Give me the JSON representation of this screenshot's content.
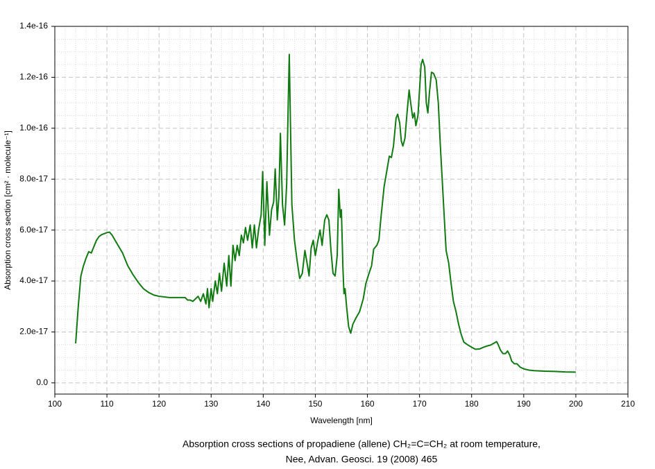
{
  "chart_data": {
    "type": "line",
    "xlabel": "Wavelength [nm]",
    "ylabel": "Absorption cross section [cm² · molecule⁻¹]",
    "caption": [
      "Absorption cross sections of propadiene (allene) CH₂=C=CH₂ at room temperature,",
      "Nee, Advan. Geosci. 19 (2008) 465"
    ],
    "xlim": [
      100,
      210
    ],
    "ylim": [
      -4.4e-18,
      1.4e-16
    ],
    "xticks": [
      100,
      110,
      120,
      130,
      140,
      150,
      160,
      170,
      180,
      190,
      200,
      210
    ],
    "yticks": [
      {
        "value": 0,
        "label": "0.0"
      },
      {
        "value": 2e-17,
        "label": "2.0e-17"
      },
      {
        "value": 4e-17,
        "label": "4.0e-17"
      },
      {
        "value": 6e-17,
        "label": "6.0e-17"
      },
      {
        "value": 8e-17,
        "label": "8.0e-17"
      },
      {
        "value": 1e-16,
        "label": "1.0e-16"
      },
      {
        "value": 1.2e-16,
        "label": "1.2e-16"
      },
      {
        "value": 1.4e-16,
        "label": "1.4e-16"
      }
    ],
    "grid": true,
    "series": [
      {
        "color": "#0f7a0f",
        "x": [
          104,
          104.5,
          105,
          105.5,
          106,
          106.5,
          107,
          107.3,
          108,
          108.5,
          109,
          110,
          110.5,
          111,
          112,
          113,
          114,
          115,
          116,
          117,
          118,
          119,
          120,
          122,
          124,
          125,
          125.5,
          126,
          126.5,
          127,
          127.5,
          128,
          128.5,
          129,
          129.3,
          129.6,
          130,
          130.3,
          130.8,
          131.2,
          131.6,
          132,
          132.5,
          133,
          133.4,
          133.8,
          134.2,
          134.6,
          135,
          135.4,
          135.8,
          136.2,
          136.6,
          137,
          137.5,
          137.9,
          138.3,
          138.7,
          139.1,
          139.6,
          139.9,
          140.3,
          140.7,
          141.2,
          141.6,
          142,
          142.3,
          142.7,
          143,
          143.3,
          143.7,
          144.1,
          144.5,
          144.8,
          145,
          145.2,
          145.5,
          146,
          146.5,
          147,
          147.5,
          148,
          148.5,
          148.8,
          149.2,
          149.6,
          150,
          150.5,
          150.9,
          151.3,
          151.8,
          152.2,
          152.6,
          153,
          153.4,
          153.8,
          154.2,
          154.5,
          154.8,
          155,
          155.3,
          155.5,
          155.7,
          156,
          156.4,
          156.8,
          157.2,
          157.8,
          158.5,
          159.2,
          159.7,
          160.3,
          160.8,
          161.2,
          161.8,
          162.2,
          162.6,
          163.2,
          163.7,
          164.2,
          164.6,
          165,
          165.5,
          165.8,
          166.2,
          166.5,
          166.8,
          167.2,
          167.6,
          168,
          168.3,
          168.7,
          169,
          169.3,
          169.7,
          170,
          170.3,
          170.6,
          171,
          171.3,
          171.6,
          171.9,
          172.3,
          172.7,
          173.2,
          173.6,
          174,
          174.4,
          174.8,
          175.1,
          175.6,
          176,
          176.5,
          177,
          177.5,
          178,
          178.5,
          179.2,
          180,
          180.7,
          181.5,
          182.3,
          183,
          183.6,
          184.2,
          184.8,
          185.1,
          185.5,
          186,
          186.5,
          186.9,
          187.3,
          187.7,
          188.2,
          188.7,
          189.3,
          190,
          191,
          192,
          194,
          196,
          198,
          200
        ],
        "values": [
          1.55e-17,
          3e-17,
          4.2e-17,
          4.6e-17,
          4.9e-17,
          5.15e-17,
          5.1e-17,
          5.25e-17,
          5.6e-17,
          5.75e-17,
          5.82e-17,
          5.9e-17,
          5.92e-17,
          5.8e-17,
          5.45e-17,
          5.1e-17,
          4.6e-17,
          4.25e-17,
          3.95e-17,
          3.7e-17,
          3.55e-17,
          3.45e-17,
          3.4e-17,
          3.35e-17,
          3.35e-17,
          3.35e-17,
          3.25e-17,
          3.25e-17,
          3.2e-17,
          3.3e-17,
          3.4e-17,
          3.2e-17,
          3.5e-17,
          3.1e-17,
          3.7e-17,
          2.95e-17,
          3.7e-17,
          3.2e-17,
          4e-17,
          3.5e-17,
          4.3e-17,
          3.6e-17,
          4.7e-17,
          3.8e-17,
          5e-17,
          3.8e-17,
          5.4e-17,
          4.8e-17,
          5.4e-17,
          5e-17,
          5.8e-17,
          5.5e-17,
          6.1e-17,
          5.6e-17,
          6.2e-17,
          5.3e-17,
          6.2e-17,
          5.3e-17,
          6e-17,
          6.6e-17,
          8.3e-17,
          5.4e-17,
          7.9e-17,
          5.8e-17,
          6.8e-17,
          7.1e-17,
          8.4e-17,
          6.4e-17,
          7.3e-17,
          9.8e-17,
          7e-17,
          6.2e-17,
          7.8e-17,
          1.1e-16,
          1.29e-16,
          1.05e-16,
          7e-17,
          5.6e-17,
          4.8e-17,
          4.1e-17,
          4.3e-17,
          5.2e-17,
          4.6e-17,
          4.2e-17,
          5.3e-17,
          5.6e-17,
          5e-17,
          5.6e-17,
          6e-17,
          5.4e-17,
          6.4e-17,
          6.6e-17,
          6.4e-17,
          5.2e-17,
          4.3e-17,
          4.2e-17,
          5e-17,
          7.6e-17,
          6.5e-17,
          6.8e-17,
          4.5e-17,
          3.5e-17,
          3.7e-17,
          3e-17,
          2.2e-17,
          1.95e-17,
          2.3e-17,
          2.55e-17,
          2.8e-17,
          3.3e-17,
          3.9e-17,
          4.3e-17,
          4.6e-17,
          5.25e-17,
          5.4e-17,
          5.6e-17,
          6.5e-17,
          7.7e-17,
          8.3e-17,
          8.9e-17,
          8.85e-17,
          9.3e-17,
          1.04e-16,
          1.055e-16,
          1.02e-16,
          9.5e-17,
          9.3e-17,
          9.6e-17,
          1.06e-16,
          1.15e-16,
          1.1e-16,
          1.04e-16,
          1.06e-16,
          1.01e-16,
          1.05e-16,
          1.15e-16,
          1.25e-16,
          1.27e-16,
          1.24e-16,
          1.1e-16,
          1.06e-16,
          1.14e-16,
          1.22e-16,
          1.215e-16,
          1.19e-16,
          1.1e-16,
          9.3e-17,
          7.8e-17,
          6.3e-17,
          5.2e-17,
          4.7e-17,
          4e-17,
          3.2e-17,
          2.8e-17,
          2.3e-17,
          1.9e-17,
          1.6e-17,
          1.5e-17,
          1.4e-17,
          1.32e-17,
          1.33e-17,
          1.4e-17,
          1.45e-17,
          1.48e-17,
          1.55e-17,
          1.62e-17,
          1.5e-17,
          1.3e-17,
          1.15e-17,
          1.15e-17,
          1.25e-17,
          1.1e-17,
          8.5e-18,
          7.5e-18,
          7.5e-18,
          6.2e-18,
          5.5e-18,
          5e-18,
          4.8e-18,
          4.6e-18,
          4.5e-18,
          4.3e-18,
          4.2e-18
        ]
      }
    ]
  }
}
